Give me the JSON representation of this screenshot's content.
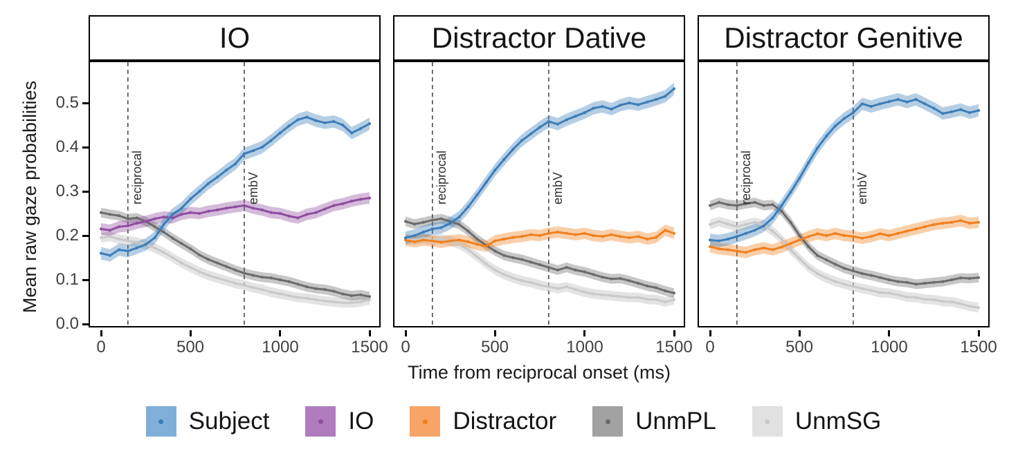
{
  "figure": {
    "y_axis_title": "Mean raw gaze probabilities",
    "x_axis_title": "Time from reciprocal onset (ms)"
  },
  "chart_data": {
    "type": "line",
    "title": "",
    "xlabel": "Time from reciprocal onset (ms)",
    "ylabel": "Mean raw gaze probabilities",
    "xlim": [
      0,
      1500
    ],
    "ylim": [
      0,
      0.58
    ],
    "x_ticks": [
      0,
      500,
      1000,
      1500
    ],
    "y_ticks": [
      "0.0",
      "0.1",
      "0.2",
      "0.3",
      "0.4",
      "0.5"
    ],
    "grid": false,
    "legend_position": "bottom",
    "vlines": [
      {
        "x": 150,
        "label": "reciprocal"
      },
      {
        "x": 800,
        "label": "embV"
      }
    ],
    "vline_style": {
      "color": "#4a4a4a",
      "dash": "6 5",
      "label_color": "#2e2e2e"
    },
    "series_meta": [
      {
        "name": "Subject",
        "line_color": "#3C7DB9",
        "swatch_color": "#7FAFD8",
        "ribbon_opacity": 0.38,
        "ribbon_halfwidth": 0.014
      },
      {
        "name": "IO",
        "line_color": "#8F4D9F",
        "swatch_color": "#B07CBE",
        "ribbon_opacity": 0.38,
        "ribbon_halfwidth": 0.013
      },
      {
        "name": "Distractor",
        "line_color": "#F0801F",
        "swatch_color": "#F7A566",
        "ribbon_opacity": 0.38,
        "ribbon_halfwidth": 0.013
      },
      {
        "name": "UnmPL",
        "line_color": "#6B6B6B",
        "swatch_color": "#A2A2A2",
        "ribbon_opacity": 0.38,
        "ribbon_halfwidth": 0.011
      },
      {
        "name": "UnmSG",
        "line_color": "#C9C9C9",
        "swatch_color": "#E1E1E1",
        "ribbon_opacity": 0.5,
        "ribbon_halfwidth": 0.011
      }
    ],
    "x": [
      0,
      50,
      100,
      150,
      200,
      250,
      300,
      350,
      400,
      450,
      500,
      550,
      600,
      650,
      700,
      750,
      800,
      850,
      900,
      950,
      1000,
      1050,
      1100,
      1150,
      1200,
      1250,
      1300,
      1350,
      1400,
      1450,
      1500
    ],
    "facets": [
      {
        "title": "IO",
        "series": [
          {
            "name": "UnmSG",
            "values": [
              0.195,
              0.198,
              0.192,
              0.188,
              0.185,
              0.18,
              0.172,
              0.162,
              0.15,
              0.138,
              0.128,
              0.118,
              0.11,
              0.104,
              0.098,
              0.092,
              0.088,
              0.082,
              0.078,
              0.072,
              0.068,
              0.064,
              0.06,
              0.058,
              0.055,
              0.052,
              0.05,
              0.048,
              0.048,
              0.05,
              0.055
            ]
          },
          {
            "name": "UnmPL",
            "values": [
              0.252,
              0.248,
              0.245,
              0.238,
              0.24,
              0.232,
              0.22,
              0.208,
              0.194,
              0.182,
              0.17,
              0.156,
              0.146,
              0.138,
              0.13,
              0.122,
              0.115,
              0.11,
              0.106,
              0.104,
              0.1,
              0.096,
              0.09,
              0.084,
              0.08,
              0.078,
              0.074,
              0.068,
              0.064,
              0.066,
              0.062
            ]
          },
          {
            "name": "IO",
            "values": [
              0.215,
              0.212,
              0.22,
              0.222,
              0.228,
              0.232,
              0.238,
              0.242,
              0.24,
              0.248,
              0.252,
              0.25,
              0.255,
              0.258,
              0.262,
              0.265,
              0.268,
              0.262,
              0.258,
              0.252,
              0.25,
              0.244,
              0.24,
              0.248,
              0.252,
              0.26,
              0.268,
              0.272,
              0.278,
              0.282,
              0.285
            ]
          },
          {
            "name": "Subject",
            "values": [
              0.16,
              0.155,
              0.168,
              0.165,
              0.172,
              0.18,
              0.195,
              0.225,
              0.248,
              0.262,
              0.283,
              0.3,
              0.318,
              0.332,
              0.348,
              0.362,
              0.385,
              0.392,
              0.4,
              0.415,
              0.432,
              0.448,
              0.462,
              0.468,
              0.46,
              0.455,
              0.458,
              0.45,
              0.432,
              0.442,
              0.453
            ]
          }
        ]
      },
      {
        "title": "Distractor Dative",
        "series": [
          {
            "name": "UnmSG",
            "values": [
              0.192,
              0.19,
              0.194,
              0.19,
              0.192,
              0.188,
              0.18,
              0.168,
              0.152,
              0.136,
              0.122,
              0.112,
              0.104,
              0.098,
              0.094,
              0.088,
              0.084,
              0.08,
              0.084,
              0.078,
              0.072,
              0.068,
              0.066,
              0.064,
              0.062,
              0.06,
              0.06,
              0.056,
              0.055,
              0.05,
              0.055
            ]
          },
          {
            "name": "UnmPL",
            "values": [
              0.232,
              0.226,
              0.23,
              0.235,
              0.238,
              0.232,
              0.225,
              0.21,
              0.192,
              0.178,
              0.165,
              0.155,
              0.15,
              0.146,
              0.14,
              0.134,
              0.128,
              0.122,
              0.128,
              0.122,
              0.118,
              0.112,
              0.106,
              0.102,
              0.103,
              0.098,
              0.092,
              0.086,
              0.082,
              0.075,
              0.07
            ]
          },
          {
            "name": "Distractor",
            "values": [
              0.19,
              0.186,
              0.19,
              0.188,
              0.185,
              0.188,
              0.19,
              0.186,
              0.18,
              0.176,
              0.188,
              0.192,
              0.196,
              0.198,
              0.202,
              0.2,
              0.205,
              0.208,
              0.205,
              0.202,
              0.205,
              0.2,
              0.198,
              0.202,
              0.198,
              0.195,
              0.198,
              0.192,
              0.196,
              0.212,
              0.205
            ]
          },
          {
            "name": "Subject",
            "values": [
              0.195,
              0.2,
              0.208,
              0.215,
              0.218,
              0.228,
              0.242,
              0.265,
              0.292,
              0.32,
              0.348,
              0.372,
              0.395,
              0.415,
              0.43,
              0.445,
              0.458,
              0.452,
              0.462,
              0.47,
              0.478,
              0.488,
              0.492,
              0.486,
              0.495,
              0.5,
              0.496,
              0.502,
              0.508,
              0.515,
              0.532
            ]
          }
        ]
      },
      {
        "title": "Distractor Genitive",
        "series": [
          {
            "name": "UnmSG",
            "values": [
              0.225,
              0.232,
              0.226,
              0.22,
              0.225,
              0.23,
              0.224,
              0.21,
              0.192,
              0.168,
              0.148,
              0.128,
              0.114,
              0.104,
              0.096,
              0.09,
              0.085,
              0.08,
              0.076,
              0.071,
              0.07,
              0.066,
              0.061,
              0.06,
              0.056,
              0.055,
              0.051,
              0.05,
              0.046,
              0.04,
              0.037
            ]
          },
          {
            "name": "UnmPL",
            "values": [
              0.268,
              0.275,
              0.27,
              0.268,
              0.272,
              0.275,
              0.268,
              0.27,
              0.255,
              0.23,
              0.2,
              0.175,
              0.155,
              0.145,
              0.135,
              0.126,
              0.12,
              0.114,
              0.11,
              0.105,
              0.1,
              0.096,
              0.094,
              0.09,
              0.092,
              0.094,
              0.096,
              0.1,
              0.104,
              0.103,
              0.105
            ]
          },
          {
            "name": "Distractor",
            "values": [
              0.175,
              0.17,
              0.168,
              0.165,
              0.162,
              0.168,
              0.172,
              0.168,
              0.174,
              0.182,
              0.19,
              0.198,
              0.204,
              0.2,
              0.205,
              0.2,
              0.198,
              0.194,
              0.198,
              0.204,
              0.2,
              0.205,
              0.21,
              0.215,
              0.22,
              0.225,
              0.228,
              0.23,
              0.234,
              0.228,
              0.23
            ]
          },
          {
            "name": "Subject",
            "values": [
              0.19,
              0.188,
              0.192,
              0.198,
              0.205,
              0.212,
              0.222,
              0.24,
              0.268,
              0.298,
              0.33,
              0.365,
              0.398,
              0.425,
              0.448,
              0.465,
              0.478,
              0.498,
              0.492,
              0.498,
              0.503,
              0.508,
              0.502,
              0.508,
              0.498,
              0.488,
              0.476,
              0.48,
              0.485,
              0.478,
              0.483
            ]
          }
        ]
      }
    ]
  }
}
